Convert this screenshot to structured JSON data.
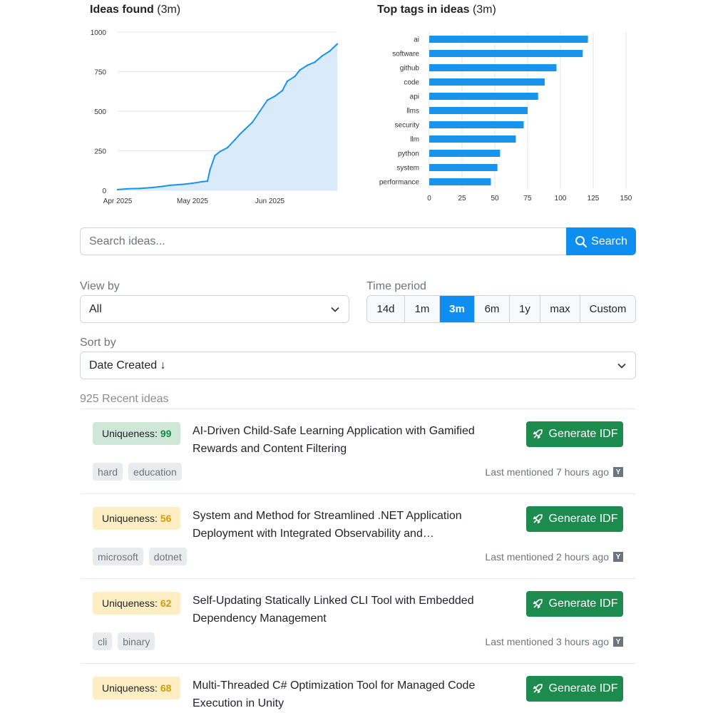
{
  "charts": {
    "line": {
      "title": "Ideas found",
      "range": "(3m)"
    },
    "bar": {
      "title": "Top tags in ideas",
      "range": "(3m)"
    }
  },
  "chart_data": [
    {
      "type": "area",
      "title": "Ideas found (3m)",
      "xlabel": "",
      "ylabel": "",
      "ylim": [
        0,
        1000
      ],
      "yticks": [
        0,
        250,
        500,
        750,
        1000
      ],
      "xticks": [
        "Apr 2025",
        "May 2025",
        "Jun 2025"
      ],
      "xlim": [
        "2025-04-01",
        "2025-06-28"
      ],
      "grid": true,
      "color": "#1a94ea",
      "fill": "#d9ebfa",
      "x": [
        "2025-04-01",
        "2025-04-05",
        "2025-04-10",
        "2025-04-15",
        "2025-04-19",
        "2025-04-22",
        "2025-04-27",
        "2025-05-01",
        "2025-05-05",
        "2025-05-07",
        "2025-05-08",
        "2025-05-10",
        "2025-05-12",
        "2025-05-15",
        "2025-05-18",
        "2025-05-20",
        "2025-05-22",
        "2025-05-25",
        "2025-05-28",
        "2025-05-31",
        "2025-06-03",
        "2025-06-06",
        "2025-06-08",
        "2025-06-11",
        "2025-06-13",
        "2025-06-16",
        "2025-06-19",
        "2025-06-22",
        "2025-06-25",
        "2025-06-28"
      ],
      "y": [
        5,
        10,
        12,
        18,
        25,
        32,
        38,
        45,
        55,
        58,
        130,
        220,
        245,
        270,
        320,
        355,
        385,
        430,
        500,
        570,
        595,
        630,
        690,
        720,
        760,
        790,
        810,
        850,
        880,
        925
      ]
    },
    {
      "type": "bar",
      "orientation": "horizontal",
      "title": "Top tags in ideas (3m)",
      "categories": [
        "ai",
        "software",
        "github",
        "code",
        "api",
        "llms",
        "security",
        "llm",
        "python",
        "system",
        "performance"
      ],
      "values": [
        121,
        117,
        97,
        88,
        83,
        75,
        72,
        66,
        54,
        52,
        47
      ],
      "xlim": [
        0,
        150
      ],
      "xticks": [
        0,
        25,
        50,
        75,
        100,
        125,
        150
      ],
      "grid": true,
      "color": "#1a94ea"
    }
  ],
  "search": {
    "placeholder": "Search ideas...",
    "button_label": "Search"
  },
  "view_by": {
    "label": "View by",
    "value": "All"
  },
  "time_period": {
    "label": "Time period",
    "options": [
      "14d",
      "1m",
      "3m",
      "6m",
      "1y",
      "max",
      "Custom"
    ],
    "selected": "3m"
  },
  "sort_by": {
    "label": "Sort by",
    "value": "Date Created ↓"
  },
  "count_label": "925 Recent ideas",
  "ideas": [
    {
      "uniqueness_label": "Uniqueness:",
      "uniqueness": "99",
      "level": "green",
      "title": "AI-Driven Child-Safe Learning Application with Gamified Rewards and Content Filtering",
      "tags": [
        "hard",
        "education"
      ],
      "last_mentioned": "Last mentioned 7 hours ago",
      "source_icon": "Y",
      "button_label": "Generate IDF"
    },
    {
      "uniqueness_label": "Uniqueness:",
      "uniqueness": "56",
      "level": "yellow",
      "title": "System and Method for Streamlined .NET Application Deployment with Integrated Observability and…",
      "tags": [
        "microsoft",
        "dotnet"
      ],
      "last_mentioned": "Last mentioned 2 hours ago",
      "source_icon": "Y",
      "button_label": "Generate IDF"
    },
    {
      "uniqueness_label": "Uniqueness:",
      "uniqueness": "62",
      "level": "yellow",
      "title": "Self-Updating Statically Linked CLI Tool with Embedded Dependency Management",
      "tags": [
        "cli",
        "binary"
      ],
      "last_mentioned": "Last mentioned 3 hours ago",
      "source_icon": "Y",
      "button_label": "Generate IDF"
    },
    {
      "uniqueness_label": "Uniqueness:",
      "uniqueness": "68",
      "level": "yellow",
      "title": "Multi-Threaded C# Optimization Tool for Managed Code Execution in Unity",
      "tags": [],
      "last_mentioned": "",
      "source_icon": "",
      "button_label": "Generate IDF"
    }
  ]
}
